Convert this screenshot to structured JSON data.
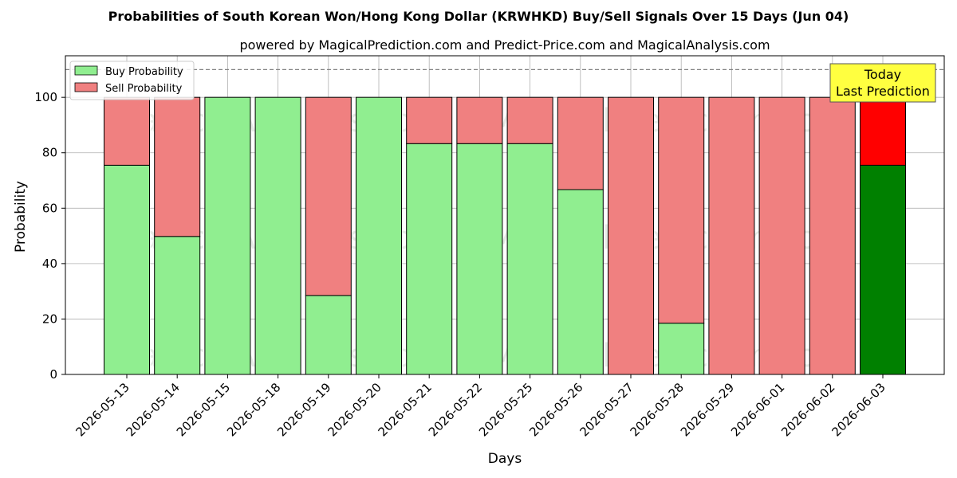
{
  "chart_data": {
    "type": "bar",
    "stacked": true,
    "title": "Probabilities of South Korean Won/Hong Kong Dollar (KRWHKD) Buy/Sell Signals Over 15 Days (Jun 04)",
    "subtitle": "powered by MagicalPrediction.com and Predict-Price.com and MagicalAnalysis.com",
    "xlabel": "Days",
    "ylabel": "Probability",
    "ylim": [
      0,
      115
    ],
    "yticks": [
      0,
      20,
      40,
      60,
      80,
      100
    ],
    "reference_line": 110,
    "grid": true,
    "legend_position": "top-left",
    "categories": [
      "2026-05-13",
      "2026-05-14",
      "2026-05-15",
      "2026-05-18",
      "2026-05-19",
      "2026-05-20",
      "2026-05-21",
      "2026-05-22",
      "2026-05-25",
      "2026-05-26",
      "2026-05-27",
      "2026-05-28",
      "2026-05-29",
      "2026-06-01",
      "2026-06-02",
      "2026-06-03"
    ],
    "series": [
      {
        "name": "Buy Probability",
        "color": "#90EE90",
        "highlight_color": "#008000",
        "values": [
          75.5,
          49.8,
          100,
          100,
          28.5,
          100,
          83.3,
          83.3,
          83.3,
          66.7,
          0,
          18.5,
          0,
          0,
          0,
          75.5
        ]
      },
      {
        "name": "Sell Probability",
        "color": "#F08080",
        "highlight_color": "#FF0000",
        "values": [
          24.5,
          50.2,
          0,
          0,
          71.5,
          0,
          16.7,
          16.7,
          16.7,
          33.3,
          100,
          81.5,
          100,
          100,
          100,
          24.5
        ]
      }
    ],
    "highlight_index": 15,
    "annotation": {
      "text_line1": "Today",
      "text_line2": "Last Prediction",
      "bg_color": "#FFFF40"
    },
    "watermarks": [
      "MagicalAnalysis.com",
      "MagicalPrediction.com"
    ]
  }
}
